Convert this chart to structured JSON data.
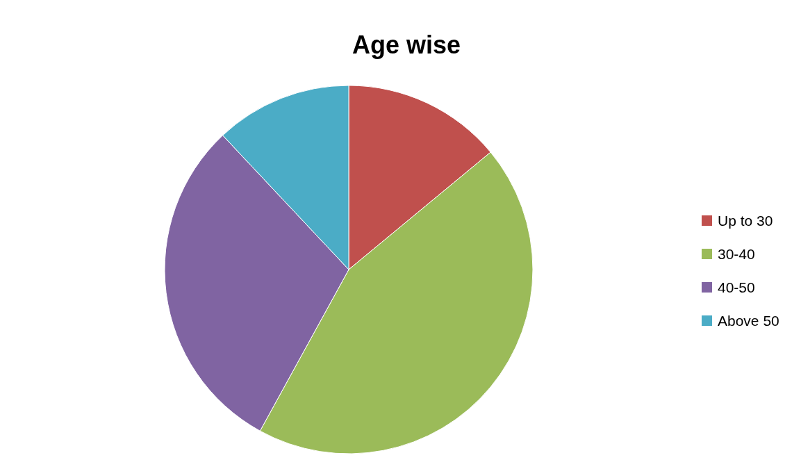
{
  "chart_data": {
    "type": "pie",
    "title": "Age wise",
    "categories": [
      "Up to 30",
      "30-40",
      "40-50",
      "Above 50"
    ],
    "values": [
      14,
      44,
      30,
      12
    ],
    "colors": [
      "#c0504d",
      "#9bbb59",
      "#8064a2",
      "#4bacc6"
    ],
    "legend": "right"
  }
}
